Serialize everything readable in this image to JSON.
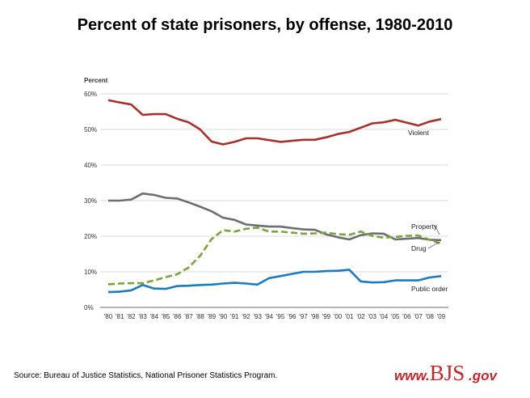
{
  "title": "Percent of state prisoners, by offense, 1980-2010",
  "source": "Source: Bureau of Justice Statistics, National Prisoner Statistics Program.",
  "logo": {
    "prefix": "www.",
    "main": "BJS",
    "suffix": " .gov"
  },
  "chart_data": {
    "type": "line",
    "ylabel": "Percent",
    "ylim": [
      0,
      60
    ],
    "yticks": [
      "0%",
      "10%",
      "20%",
      "30%",
      "40%",
      "50%",
      "60%"
    ],
    "x": [
      "'80",
      "'81",
      "'82",
      "'83",
      "'84",
      "'85",
      "'86",
      "'87",
      "'88",
      "'89",
      "'90",
      "'91",
      "'92",
      "'93",
      "'94",
      "'95",
      "'96",
      "'97",
      "'98",
      "'99",
      "'00",
      "'01",
      "'02",
      "'03",
      "'04",
      "'05",
      "'06",
      "'07",
      "'08",
      "'09"
    ],
    "grid": true,
    "series": [
      {
        "name": "Violent",
        "color": "#a8302a",
        "dashed": false,
        "values": [
          58.2,
          57.6,
          57,
          54.1,
          54.3,
          54.3,
          53,
          52,
          50,
          46.6,
          45.8,
          46.5,
          47.5,
          47.5,
          47,
          46.5,
          46.8,
          47.1,
          47.1,
          47.8,
          48.7,
          49.3,
          50.5,
          51.7,
          52,
          52.7,
          51.9,
          51.1,
          52.2,
          52.9
        ]
      },
      {
        "name": "Property",
        "color": "#6d6e71",
        "dashed": false,
        "values": [
          30,
          30,
          30.3,
          32,
          31.6,
          30.8,
          30.6,
          29.5,
          28.3,
          27,
          25.2,
          24.6,
          23.3,
          23,
          22.7,
          22.7,
          22.3,
          21.9,
          21.8,
          20.5,
          19.7,
          19.1,
          20.3,
          20.8,
          20.7,
          19.1,
          19.3,
          19.5,
          19,
          18.9
        ]
      },
      {
        "name": "Drug",
        "color": "#7aa43a",
        "dashed": true,
        "values": [
          6.5,
          6.7,
          6.8,
          6.8,
          7.6,
          8.5,
          9.3,
          11.2,
          14.5,
          19.2,
          21.7,
          21.3,
          22.1,
          22.4,
          21.3,
          21.3,
          21,
          20.7,
          20.8,
          21,
          20.6,
          20.4,
          21.3,
          20.1,
          19.6,
          19.8,
          20.1,
          20.2,
          19,
          17.9
        ]
      },
      {
        "name": "Public order",
        "color": "#1a7bc1",
        "dashed": false,
        "values": [
          4.3,
          4.4,
          4.8,
          6.3,
          5.3,
          5.2,
          6,
          6.1,
          6.3,
          6.4,
          6.7,
          6.9,
          6.7,
          6.4,
          8.2,
          8.8,
          9.4,
          10,
          10,
          10.2,
          10.3,
          10.6,
          7.3,
          7,
          7.1,
          7.6,
          7.6,
          7.6,
          8.4,
          8.8
        ]
      }
    ]
  }
}
